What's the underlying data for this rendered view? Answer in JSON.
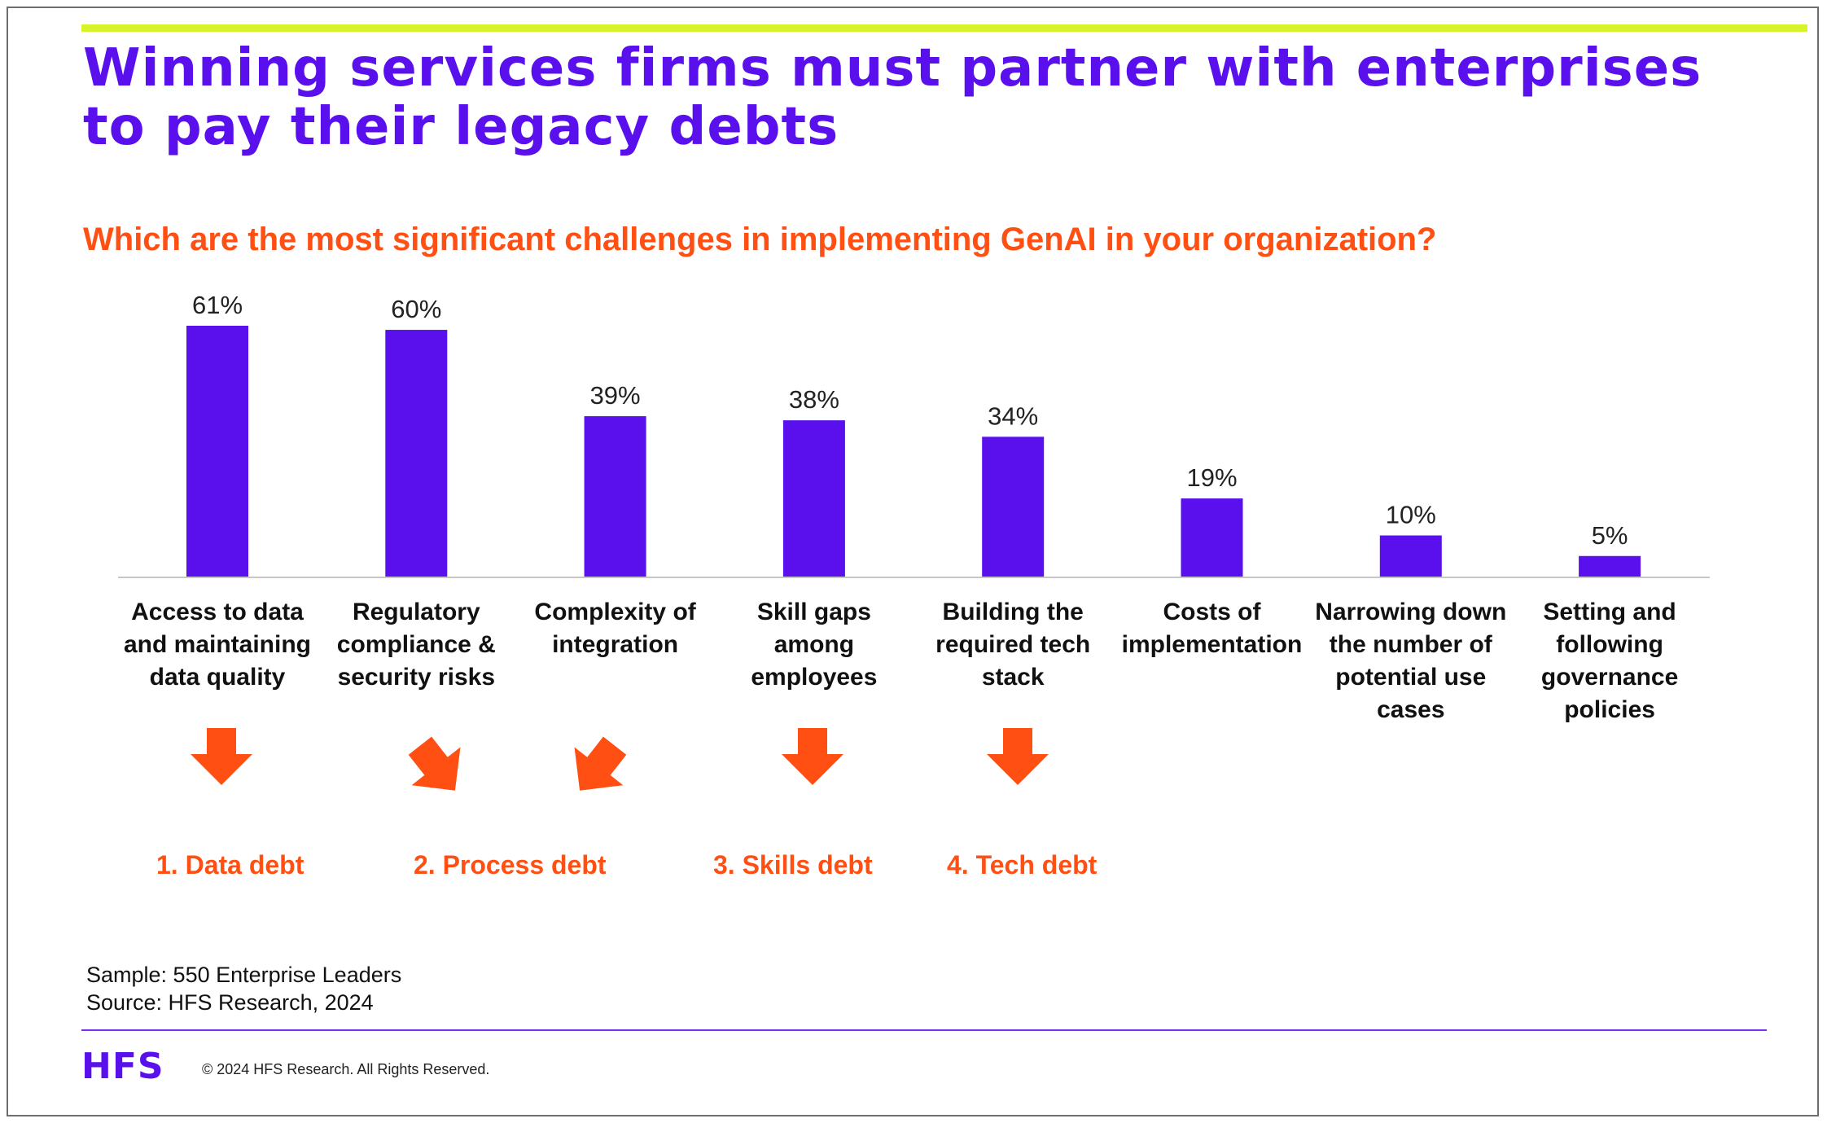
{
  "title": "Winning services firms must partner with enterprises to pay their legacy debts",
  "question": "Which are the most significant challenges in implementing GenAI in your organization?",
  "colors": {
    "bar": "#5a10ec",
    "title": "#5a10ec",
    "accent": "#ff4f12",
    "top_bar": "#d8f22c",
    "axis": "#c8c8c8",
    "footer_line": "#7a2ef0"
  },
  "chart_data": {
    "type": "bar",
    "categories": [
      "Access to data and maintaining data quality",
      "Regulatory compliance & security risks",
      "Complexity of integration",
      "Skill gaps among employees",
      "Building the required tech stack",
      "Costs of implementation",
      "Narrowing down the number of potential use cases",
      "Setting and following governance policies"
    ],
    "values": [
      61,
      60,
      39,
      38,
      34,
      19,
      10,
      5
    ],
    "value_labels": [
      "61%",
      "60%",
      "39%",
      "38%",
      "34%",
      "19%",
      "10%",
      "5%"
    ],
    "ylim": [
      0,
      61
    ],
    "grid": false
  },
  "debts": [
    {
      "label": "1. Data debt",
      "arrows": [
        {
          "category": 0,
          "direction": "down"
        }
      ]
    },
    {
      "label": "2. Process debt",
      "arrows": [
        {
          "category": 1,
          "direction": "down-right"
        },
        {
          "category": 2,
          "direction": "down-left"
        }
      ]
    },
    {
      "label": "3. Skills debt",
      "arrows": [
        {
          "category": 3,
          "direction": "down"
        }
      ]
    },
    {
      "label": "4. Tech debt",
      "arrows": [
        {
          "category": 4,
          "direction": "down"
        }
      ]
    }
  ],
  "notes": {
    "sample": "Sample: 550 Enterprise Leaders",
    "source": "Source: HFS Research, 2024"
  },
  "footer": {
    "logo": "HFS",
    "copyright": "© 2024 HFS Research. All Rights Reserved."
  }
}
